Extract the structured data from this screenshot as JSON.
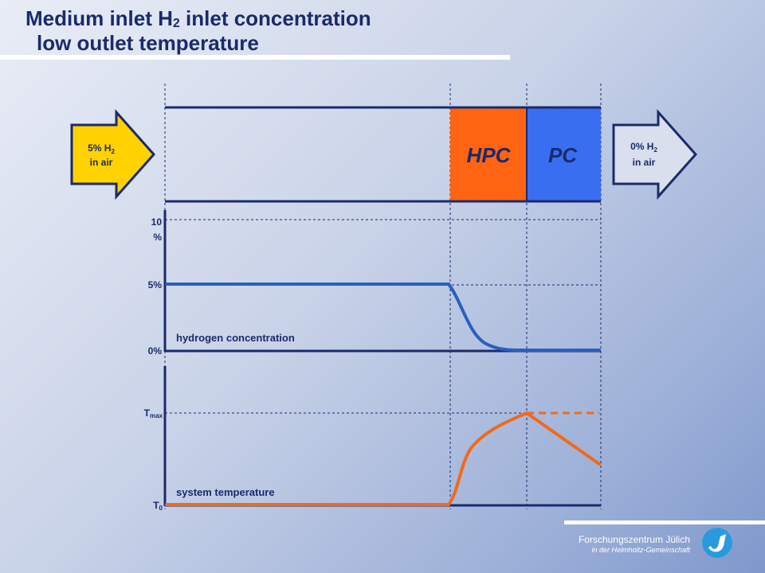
{
  "title": {
    "line1_prefix": "Medium inlet H",
    "line1_sub": "2",
    "line1_suffix": " inlet concentration",
    "line2": "low outlet temperature"
  },
  "inlet": {
    "line1_prefix": "5% H",
    "line1_sub": "2",
    "line2": "in air"
  },
  "outlet": {
    "line1_prefix": "0% H",
    "line1_sub": "2",
    "line2": "in air"
  },
  "zones": {
    "hpc": "HPC",
    "pc": "PC"
  },
  "concentration_panel": {
    "tick_top_a": "10",
    "tick_top_b": "%",
    "tick_mid": "5%",
    "tick_bottom": "0%",
    "label": "hydrogen concentration"
  },
  "temperature_panel": {
    "tick_top": "T",
    "tick_top_sub": "max",
    "tick_bottom": "T",
    "tick_bottom_sub": "0",
    "label": "system temperature"
  },
  "footer": {
    "org": "Forschungszentrum Jülich",
    "sub": "in der Helmholtz-Gemeinschaft"
  },
  "colors": {
    "navy": "#1a2a6c",
    "hpc": "#ff6412",
    "pc": "#3a6ef0",
    "inlet_arrow": "#ffd200",
    "outlet_arrow": "#d9dfec",
    "concentration_curve": "#2a5fc0",
    "temperature_curve": "#f06a1a"
  }
}
